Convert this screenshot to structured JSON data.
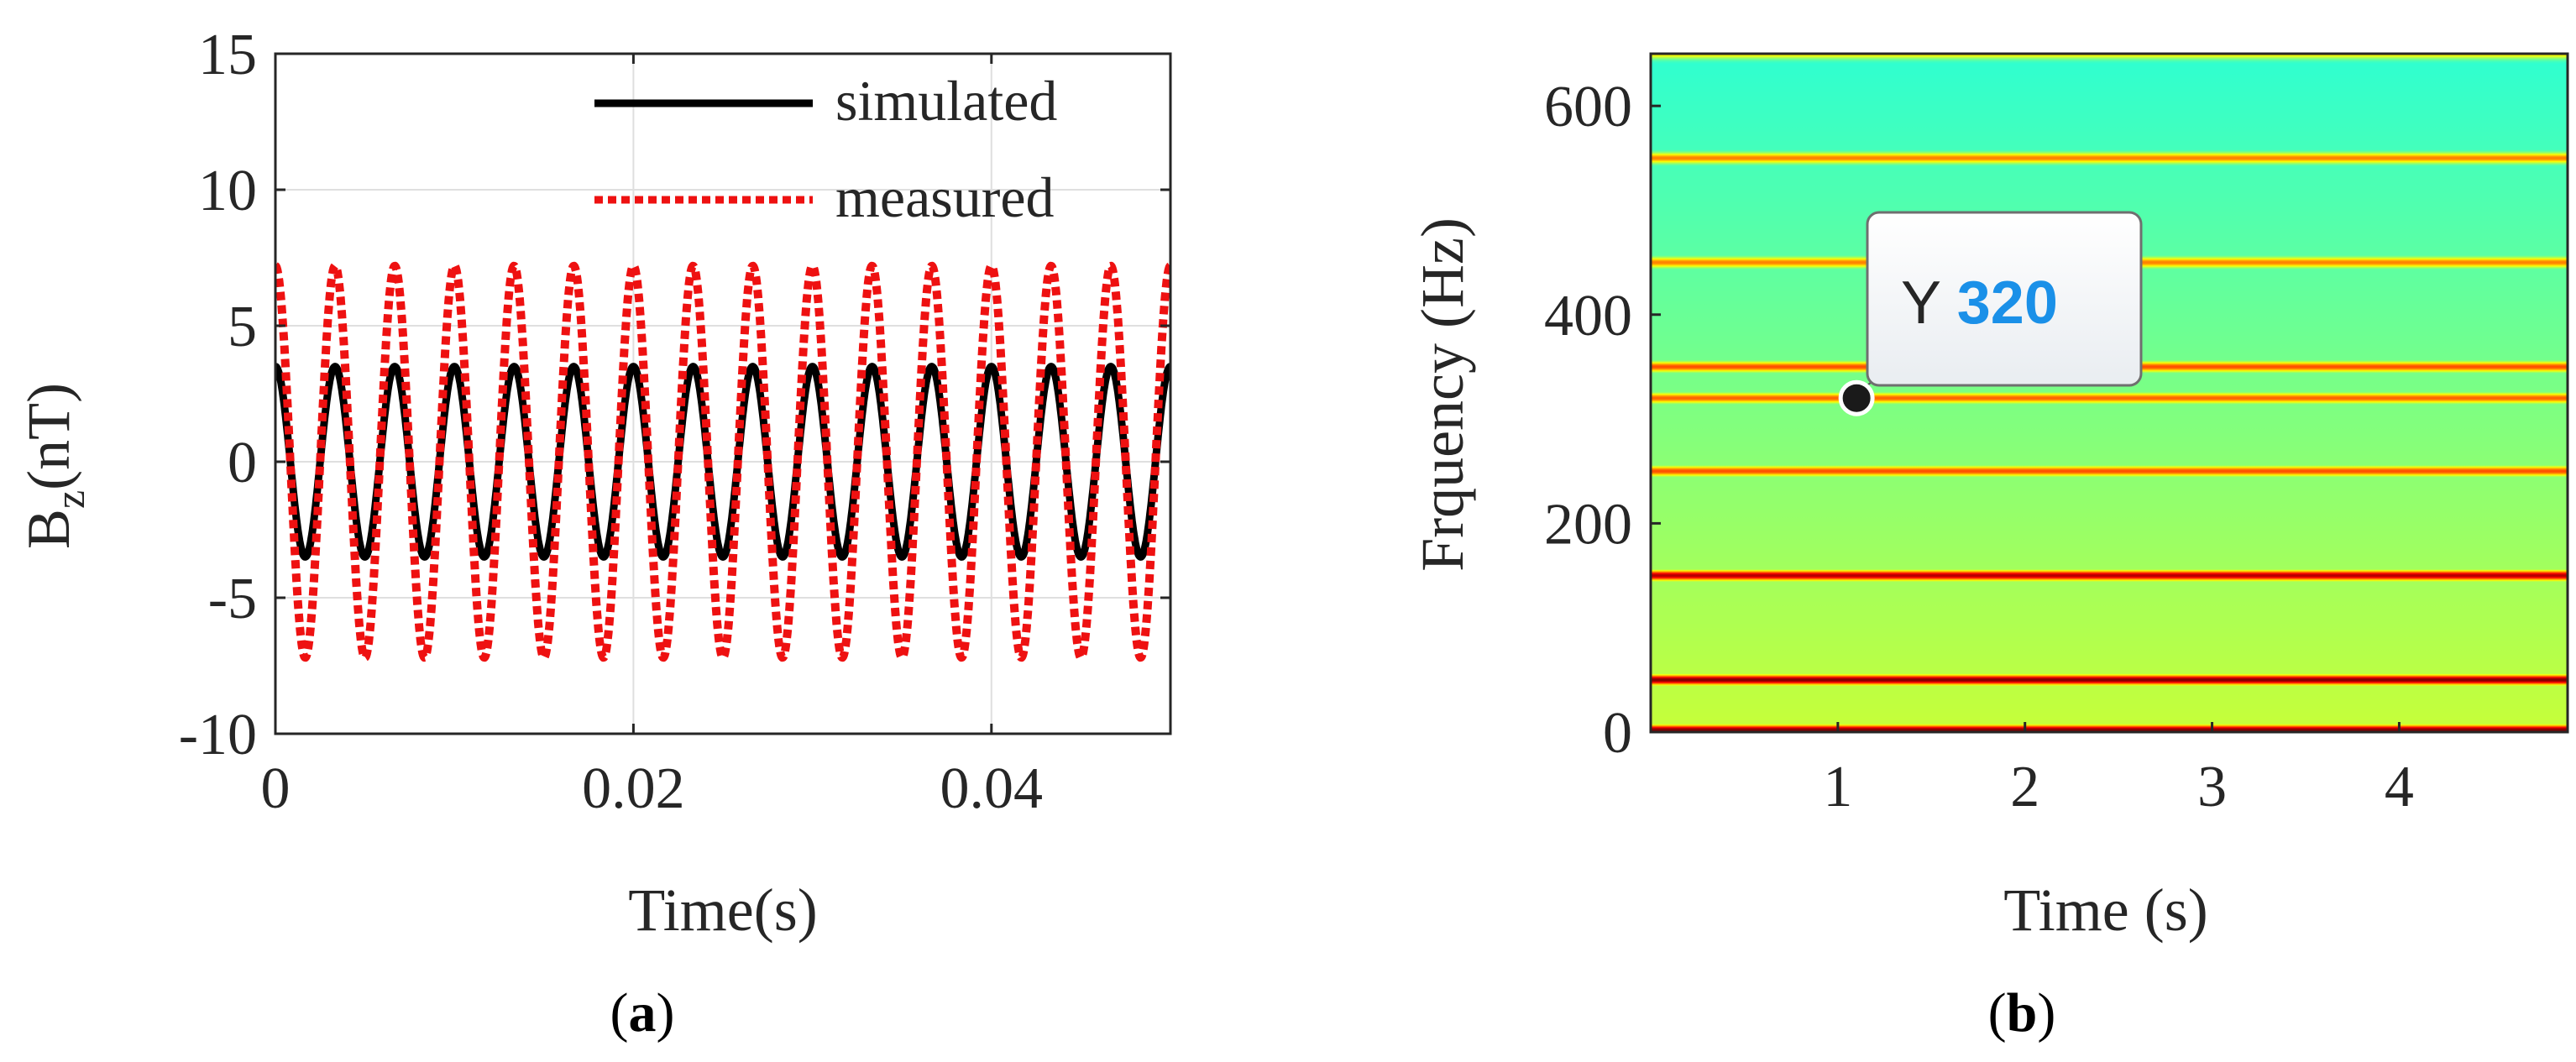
{
  "chart_data": [
    {
      "type": "line",
      "panel_label": "(a)",
      "panel_letter": "a",
      "xlabel": "Time(s)",
      "ylabel_main": "B",
      "ylabel_sub": "z",
      "ylabel_unit": "(nT)",
      "xlim": [
        0,
        0.05
      ],
      "ylim": [
        -10,
        15
      ],
      "xticks": [
        0,
        0.02,
        0.04
      ],
      "xtick_labels": [
        "0",
        "0.02",
        "0.04"
      ],
      "yticks": [
        -10,
        -5,
        0,
        5,
        10,
        15
      ],
      "ytick_labels": [
        "-10",
        "-5",
        "0",
        "5",
        "10",
        "15"
      ],
      "grid": true,
      "legend_position": "top-right",
      "series": [
        {
          "name": "simulated",
          "style": "solid",
          "color": "#000000",
          "frequency_hz": 300,
          "amplitude_nT": 3.5,
          "phase": "cosine"
        },
        {
          "name": "measured",
          "style": "dotted",
          "color": "#ee1111",
          "frequency_hz": 300,
          "amplitude_nT": 7.2,
          "phase": "cosine"
        }
      ]
    },
    {
      "type": "heatmap",
      "panel_label": "(b)",
      "panel_letter": "b",
      "xlabel": "Time (s)",
      "ylabel": "Frquency (Hz)",
      "xlim": [
        0,
        4.9
      ],
      "ylim": [
        0,
        650
      ],
      "xticks": [
        1,
        2,
        3,
        4
      ],
      "xtick_labels": [
        "1",
        "2",
        "3",
        "4"
      ],
      "yticks": [
        0,
        200,
        400,
        600
      ],
      "ytick_labels": [
        "0",
        "200",
        "400",
        "600"
      ],
      "colormap": "jet",
      "background_level": 0.42,
      "bands": [
        {
          "freq_hz": 2,
          "intensity": 1.0
        },
        {
          "freq_hz": 50,
          "intensity": 1.0
        },
        {
          "freq_hz": 150,
          "intensity": 0.95
        },
        {
          "freq_hz": 250,
          "intensity": 0.8
        },
        {
          "freq_hz": 320,
          "intensity": 0.78
        },
        {
          "freq_hz": 350,
          "intensity": 0.8
        },
        {
          "freq_hz": 450,
          "intensity": 0.75
        },
        {
          "freq_hz": 550,
          "intensity": 0.75
        },
        {
          "freq_hz": 650,
          "intensity": 0.65
        }
      ],
      "datatip": {
        "label": "Y",
        "value": "320",
        "x": 1.1,
        "y": 320,
        "color": "#1a90e8"
      }
    }
  ]
}
